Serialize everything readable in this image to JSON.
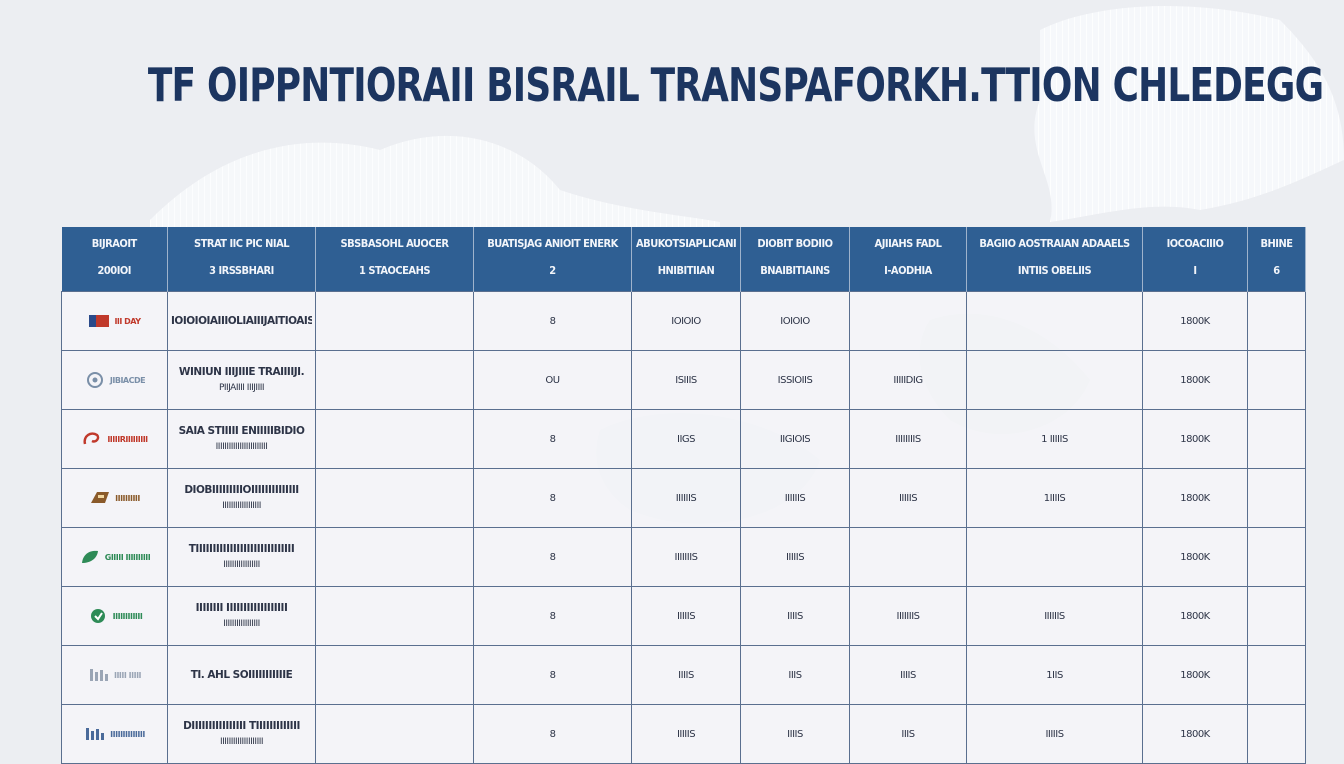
{
  "title": "TF OIPPNTIORAII BISRAIL TRANSPAFORKH.TTION CHLEDEGG",
  "columns": [
    {
      "top": "BIJRAOIT",
      "bottom": "200IOI"
    },
    {
      "top": "STRAT IIC PIC NIAL",
      "bottom": "3 IRSSBHARI"
    },
    {
      "top": "SBSBASOHL AUOCER",
      "bottom": "1 STAOCEAHS"
    },
    {
      "top": "BUATISJAG ANIOIT ENERK",
      "bottom": "2"
    },
    {
      "top": "ABUKOTSIAPLICANIE ITE",
      "bottom": "HNIBITIIAN"
    },
    {
      "top": "DIOBIT BODIIO",
      "bottom": "BNAIBITIAINS"
    },
    {
      "top": "AJIIAHS FADL",
      "bottom": "I-AODHIA"
    },
    {
      "top": "BAGIIO AOSTRAIAN ADAAELS",
      "bottom": "INTIIS   OBELIIS"
    },
    {
      "top": "IOCOACIIIO",
      "bottom": "I"
    },
    {
      "top": "BHINE",
      "bottom": "6"
    }
  ],
  "rows": [
    {
      "logo_text": "III DAY",
      "logo_color": "#c0392b",
      "logo_icon": "flag-logo-icon",
      "name1": "IOIOIOIAIIIOLIAIIIJAITIOAIS",
      "name2": "",
      "c2": "",
      "c3": "8",
      "c4": "IOIOIO",
      "c5": "IOIOIO",
      "c6": "",
      "c7": "",
      "c8": "1800K",
      "c9": ""
    },
    {
      "logo_text": "JIBIACDE",
      "logo_color": "#7a8fa8",
      "logo_icon": "emblem-logo-icon",
      "name1": "WINIUN IIIJIIIE TRAIIIIJI.",
      "name2": "PIIJAIIII IIIJIIII",
      "c2": "",
      "c3": "OU",
      "c4": "ISIIIS",
      "c5": "ISSIOIIS",
      "c6": "IIIIIDIG",
      "c7": "",
      "c8": "1800K",
      "c9": ""
    },
    {
      "logo_text": "IIIIIRIIIIIIIII",
      "logo_color": "#c0392b",
      "logo_icon": "swirl-logo-icon",
      "name1": "SAIA STIIIII ENIIIIIBIDIO",
      "name2": "IIIIIIIIIIIIIIIIIIIIIIII",
      "c2": "",
      "c3": "8",
      "c4": "IIGS",
      "c5": "IIGIOIS",
      "c6": "IIIIIIIIS",
      "c7": "1 IIIIIS",
      "c8": "1800K",
      "c9": ""
    },
    {
      "logo_text": "IIIIIIIIII",
      "logo_color": "#8a5a2a",
      "logo_icon": "train-logo-icon",
      "name1": "DIOBIIIIIIIIIOIIIIIIIIIIIIII",
      "name2": "IIIIIIIIIIIIIIIIII",
      "c2": "",
      "c3": "8",
      "c4": "IIIIIIS",
      "c5": "IIIIIIS",
      "c6": "IIIIIS",
      "c7": "1IIIIS",
      "c8": "1800K",
      "c9": ""
    },
    {
      "logo_text": "GIIIII IIIIIIIIII",
      "logo_color": "#2e8b57",
      "logo_icon": "leaf-logo-icon",
      "name1": "TIIIIIIIIIIIIIIIIIIIIIIIIIIIII",
      "name2": "IIIIIIIIIIIIIIIII",
      "c2": "",
      "c3": "8",
      "c4": "IIIIIIIS",
      "c5": "IIIIIS",
      "c6": "",
      "c7": "",
      "c8": "1800K",
      "c9": ""
    },
    {
      "logo_text": "IIIIIIIIIIII",
      "logo_color": "#2e8b57",
      "logo_icon": "circle-logo-icon",
      "name1": "IIIIIIII IIIIIIIIIIIIIIIIII",
      "name2": "IIIIIIIIIIIIIIIII",
      "c2": "",
      "c3": "8",
      "c4": "IIIIIS",
      "c5": "IIIIS",
      "c6": "IIIIIIIS",
      "c7": "IIIIIIS",
      "c8": "1800K",
      "c9": ""
    },
    {
      "logo_text": "IIIII IIIII",
      "logo_color": "#9aa5b5",
      "logo_icon": "bars-logo-icon",
      "name1": "TI. AHL SOIIIIIIIIIIIE",
      "name2": "",
      "c2": "",
      "c3": "8",
      "c4": "IIIIS",
      "c5": "IIIS",
      "c6": "IIIIS",
      "c7": "1IIS",
      "c8": "1800K",
      "c9": ""
    },
    {
      "logo_text": "IIIIIIIIIIIIII",
      "logo_color": "#4a6a9a",
      "logo_icon": "bars-logo-icon",
      "name1": "DIIIIIIIIIIIIIIII TIIIIIIIIIIIII",
      "name2": "IIIIIIIIIIIIIIIIIIII",
      "c2": "",
      "c3": "8",
      "c4": "IIIIIS",
      "c5": "IIIIS",
      "c6": "IIIS",
      "c7": "IIIIIS",
      "c8": "1800K",
      "c9": ""
    }
  ]
}
